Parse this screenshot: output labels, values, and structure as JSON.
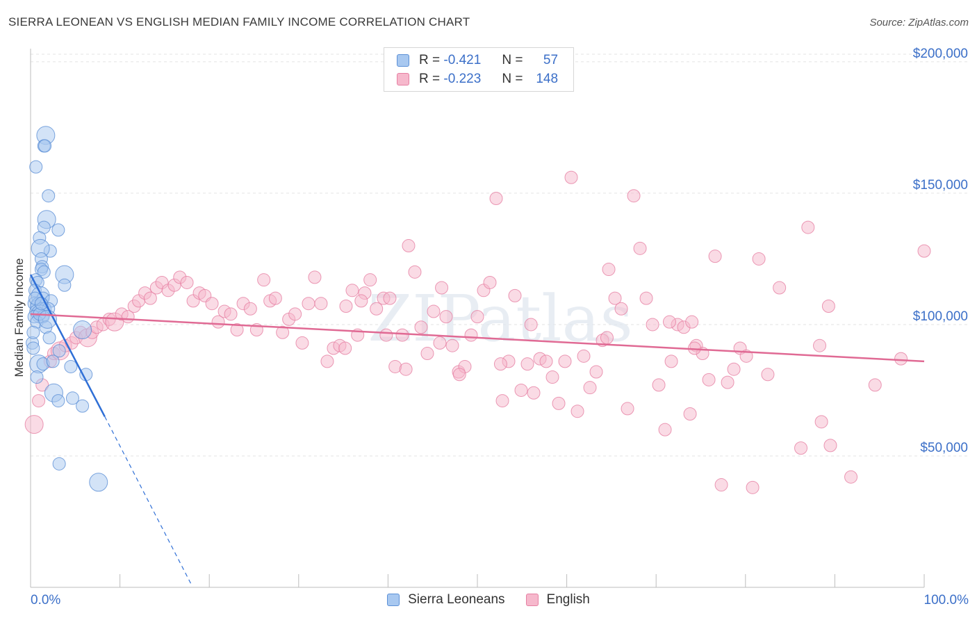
{
  "title": "SIERRA LEONEAN VS ENGLISH MEDIAN FAMILY INCOME CORRELATION CHART",
  "source": "Source: ZipAtlas.com",
  "watermark": "ZIPatlas",
  "legend": {
    "rows": [
      {
        "r_label": "R =",
        "r_value": "-0.421",
        "n_label": "N =",
        "n_value": "57"
      },
      {
        "r_label": "R =",
        "r_value": "-0.223",
        "n_label": "N =",
        "n_value": "148"
      }
    ]
  },
  "colors": {
    "blue_fill": "#a8c8f0",
    "blue_stroke": "#5b8fd6",
    "blue_line": "#2f6fd6",
    "pink_fill": "#f6b8cc",
    "pink_stroke": "#e67fa2",
    "pink_line": "#e06a94",
    "axis_text": "#3b6fc8",
    "grid": "#e3e3e3"
  },
  "chart_data": {
    "type": "scatter",
    "ylabel": "Median Family Income",
    "xlabel": "",
    "x_tick_labels": [
      "0.0%",
      "100.0%"
    ],
    "y_ticks": [
      {
        "value": 50000,
        "label": "$50,000"
      },
      {
        "value": 100000,
        "label": "$100,000"
      },
      {
        "value": 150000,
        "label": "$150,000"
      },
      {
        "value": 200000,
        "label": "$200,000"
      }
    ],
    "xlim": [
      0,
      100
    ],
    "ylim": [
      0,
      205000
    ],
    "grid": true,
    "legend_position": "top-center and bottom",
    "series": [
      {
        "name": "Sierra Leoneans",
        "trend": {
          "x0": 0,
          "y0": 119000,
          "x1": 8.3,
          "y1": 65000,
          "dashed_to_x": 18,
          "dashed_to_y": 1000
        },
        "points": [
          [
            1.7,
            172000
          ],
          [
            1.5,
            168000
          ],
          [
            1.6,
            168000
          ],
          [
            0.6,
            160000
          ],
          [
            2.0,
            149000
          ],
          [
            1.8,
            140000
          ],
          [
            1.5,
            137000
          ],
          [
            3.1,
            136000
          ],
          [
            1.0,
            133000
          ],
          [
            2.2,
            128000
          ],
          [
            1.1,
            129000
          ],
          [
            1.2,
            125000
          ],
          [
            1.3,
            122000
          ],
          [
            1.2,
            121000
          ],
          [
            1.5,
            120000
          ],
          [
            3.8,
            119000
          ],
          [
            0.6,
            117000
          ],
          [
            0.8,
            116000
          ],
          [
            3.8,
            115000
          ],
          [
            0.5,
            113000
          ],
          [
            1.1,
            111000
          ],
          [
            1.4,
            110000
          ],
          [
            2.3,
            109000
          ],
          [
            0.4,
            108000
          ],
          [
            0.7,
            107000
          ],
          [
            1.0,
            107000
          ],
          [
            1.3,
            106000
          ],
          [
            1.6,
            106000
          ],
          [
            2.0,
            106000
          ],
          [
            0.6,
            105000
          ],
          [
            1.1,
            104000
          ],
          [
            0.4,
            103000
          ],
          [
            1.4,
            103000
          ],
          [
            0.7,
            101000
          ],
          [
            1.7,
            99000
          ],
          [
            5.8,
            98000
          ],
          [
            2.1,
            95000
          ],
          [
            0.2,
            93000
          ],
          [
            0.3,
            91000
          ],
          [
            3.2,
            90000
          ],
          [
            0.9,
            85000
          ],
          [
            1.4,
            85000
          ],
          [
            4.5,
            84000
          ],
          [
            0.7,
            80000
          ],
          [
            6.2,
            81000
          ],
          [
            2.6,
            74000
          ],
          [
            3.1,
            71000
          ],
          [
            4.7,
            72000
          ],
          [
            5.8,
            69000
          ],
          [
            3.2,
            47000
          ],
          [
            7.6,
            40000
          ],
          [
            1.0,
            104000
          ],
          [
            0.5,
            110000
          ],
          [
            2.5,
            86000
          ],
          [
            0.3,
            97000
          ],
          [
            1.9,
            102000
          ],
          [
            1.2,
            108000
          ]
        ]
      },
      {
        "name": "English",
        "trend": {
          "x0": 0,
          "y0": 104000,
          "x1": 100,
          "y1": 86000
        },
        "points": [
          [
            0.4,
            62000
          ],
          [
            0.9,
            71000
          ],
          [
            1.3,
            77000
          ],
          [
            2.2,
            86000
          ],
          [
            2.6,
            89000
          ],
          [
            3.3,
            90000
          ],
          [
            3.9,
            92000
          ],
          [
            4.6,
            93000
          ],
          [
            5.1,
            95000
          ],
          [
            5.6,
            97000
          ],
          [
            6.4,
            95000
          ],
          [
            6.9,
            97000
          ],
          [
            7.4,
            99000
          ],
          [
            8.1,
            100000
          ],
          [
            8.8,
            102000
          ],
          [
            9.4,
            101000
          ],
          [
            10.2,
            104000
          ],
          [
            10.9,
            103000
          ],
          [
            11.6,
            107000
          ],
          [
            12.1,
            109000
          ],
          [
            12.8,
            112000
          ],
          [
            13.4,
            110000
          ],
          [
            14.1,
            114000
          ],
          [
            14.7,
            116000
          ],
          [
            15.4,
            113000
          ],
          [
            16.1,
            115000
          ],
          [
            16.7,
            118000
          ],
          [
            17.5,
            116000
          ],
          [
            18.2,
            109000
          ],
          [
            18.9,
            112000
          ],
          [
            19.5,
            111000
          ],
          [
            20.3,
            108000
          ],
          [
            21.0,
            101000
          ],
          [
            21.7,
            105000
          ],
          [
            22.4,
            104000
          ],
          [
            23.1,
            98000
          ],
          [
            23.8,
            108000
          ],
          [
            24.6,
            106000
          ],
          [
            25.3,
            98000
          ],
          [
            26.1,
            117000
          ],
          [
            26.8,
            109000
          ],
          [
            27.4,
            110000
          ],
          [
            28.2,
            97000
          ],
          [
            28.9,
            102000
          ],
          [
            29.6,
            104000
          ],
          [
            30.4,
            93000
          ],
          [
            31.1,
            108000
          ],
          [
            31.8,
            118000
          ],
          [
            32.5,
            108000
          ],
          [
            33.2,
            86000
          ],
          [
            33.9,
            91000
          ],
          [
            34.6,
            92000
          ],
          [
            35.3,
            107000
          ],
          [
            36.0,
            113000
          ],
          [
            36.6,
            96000
          ],
          [
            37.4,
            112000
          ],
          [
            38.0,
            117000
          ],
          [
            38.7,
            106000
          ],
          [
            39.5,
            110000
          ],
          [
            40.2,
            110000
          ],
          [
            40.8,
            84000
          ],
          [
            41.6,
            96000
          ],
          [
            42.3,
            130000
          ],
          [
            43.0,
            120000
          ],
          [
            43.7,
            99000
          ],
          [
            44.4,
            89000
          ],
          [
            45.1,
            105000
          ],
          [
            45.8,
            93000
          ],
          [
            46.5,
            103000
          ],
          [
            47.2,
            92000
          ],
          [
            47.9,
            82000
          ],
          [
            48.6,
            84000
          ],
          [
            49.3,
            96000
          ],
          [
            50.0,
            103000
          ],
          [
            50.7,
            113000
          ],
          [
            51.4,
            116000
          ],
          [
            52.1,
            148000
          ],
          [
            52.8,
            71000
          ],
          [
            53.5,
            86000
          ],
          [
            54.2,
            111000
          ],
          [
            54.9,
            75000
          ],
          [
            55.6,
            85000
          ],
          [
            56.3,
            74000
          ],
          [
            57.0,
            87000
          ],
          [
            57.7,
            86000
          ],
          [
            58.4,
            80000
          ],
          [
            59.1,
            70000
          ],
          [
            59.8,
            86000
          ],
          [
            60.5,
            156000
          ],
          [
            61.2,
            67000
          ],
          [
            61.9,
            88000
          ],
          [
            62.6,
            76000
          ],
          [
            63.3,
            82000
          ],
          [
            64.0,
            94000
          ],
          [
            64.7,
            121000
          ],
          [
            65.4,
            110000
          ],
          [
            66.1,
            106000
          ],
          [
            66.8,
            68000
          ],
          [
            67.5,
            149000
          ],
          [
            68.2,
            129000
          ],
          [
            68.9,
            110000
          ],
          [
            69.6,
            100000
          ],
          [
            70.3,
            77000
          ],
          [
            71.0,
            60000
          ],
          [
            71.7,
            86000
          ],
          [
            72.4,
            100000
          ],
          [
            73.1,
            99000
          ],
          [
            73.8,
            66000
          ],
          [
            74.5,
            92000
          ],
          [
            75.2,
            89000
          ],
          [
            75.9,
            79000
          ],
          [
            76.6,
            126000
          ],
          [
            77.3,
            39000
          ],
          [
            78.0,
            78000
          ],
          [
            78.7,
            83000
          ],
          [
            79.4,
            91000
          ],
          [
            80.1,
            88000
          ],
          [
            80.8,
            38000
          ],
          [
            81.5,
            125000
          ],
          [
            82.5,
            81000
          ],
          [
            83.8,
            114000
          ],
          [
            74.3,
            91000
          ],
          [
            74.0,
            101000
          ],
          [
            71.5,
            101000
          ],
          [
            64.5,
            95000
          ],
          [
            86.2,
            53000
          ],
          [
            87.0,
            137000
          ],
          [
            88.3,
            92000
          ],
          [
            88.5,
            63000
          ],
          [
            89.3,
            107000
          ],
          [
            89.5,
            54000
          ],
          [
            91.8,
            42000
          ],
          [
            94.5,
            77000
          ],
          [
            97.4,
            87000
          ],
          [
            100.0,
            128000
          ],
          [
            35.2,
            91000
          ],
          [
            42.0,
            83000
          ],
          [
            48.0,
            81000
          ],
          [
            52.6,
            85000
          ],
          [
            56.0,
            100000
          ],
          [
            46.0,
            114000
          ],
          [
            37.0,
            109000
          ],
          [
            39.8,
            96000
          ]
        ]
      }
    ]
  }
}
